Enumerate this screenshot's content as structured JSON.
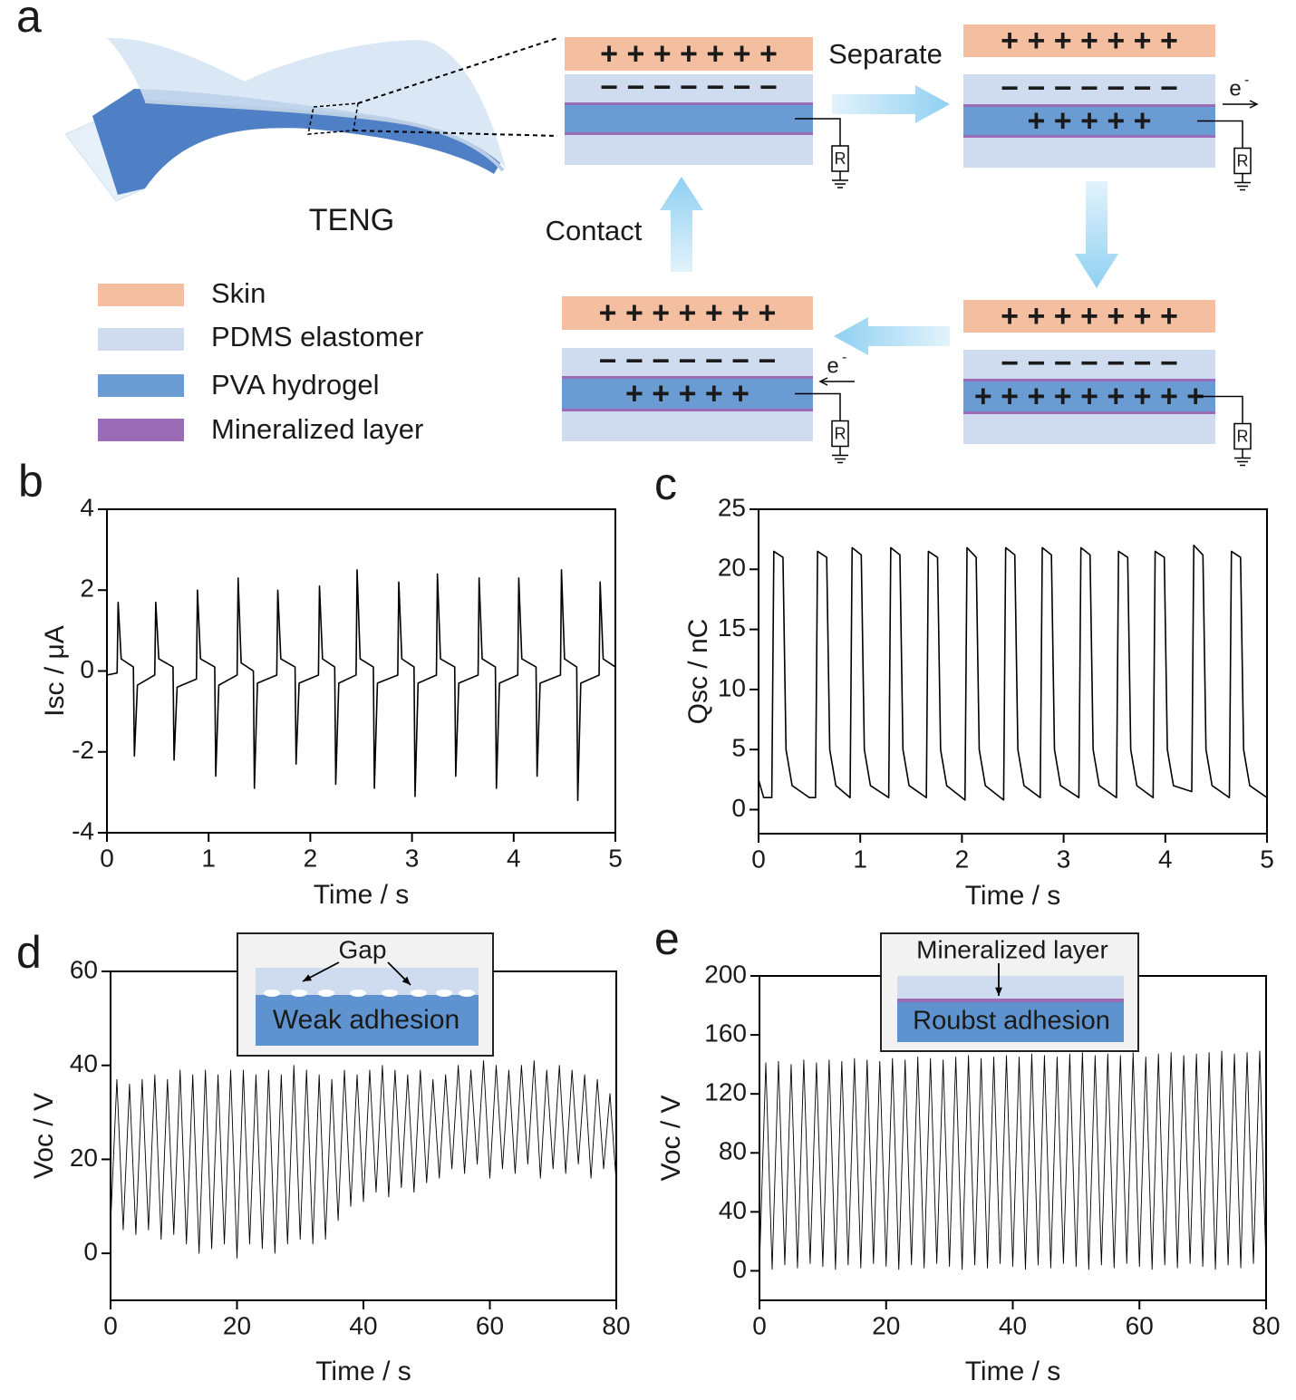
{
  "diagram": {
    "panel": "a",
    "device_label": "TENG",
    "legend": [
      {
        "label": "Skin",
        "color": "#f4bfa1"
      },
      {
        "label": "PDMS elastomer",
        "color": "#cfdbef"
      },
      {
        "label": "PVA hydrogel",
        "color": "#6a9bd3"
      },
      {
        "label": "Mineralized layer",
        "color": "#9b6cb5"
      }
    ],
    "steps": [
      "Separate",
      "Contact"
    ],
    "states": [
      {
        "top": "+ + + + + + +",
        "middle": "− − − − − − −"
      },
      {
        "top": "+ + + + + + +",
        "middle": "− − − − − − −",
        "inner": "+ + + + +"
      },
      {
        "top": "+ + + + + + +",
        "middle": "− − − − − − −",
        "inner": "+ + + + + + + + +"
      },
      {
        "top": "+ + + + + + +",
        "middle": "− − − − − − −",
        "inner": "+ + + + +"
      }
    ],
    "electron": "e",
    "electron_sign": "-",
    "resistor": "R"
  },
  "chart_data": [
    {
      "type": "line",
      "panel": "b",
      "xlabel": "Time / s",
      "ylabel": "Isc / μA",
      "color": "#000000",
      "xlim": [
        0,
        5
      ],
      "ylim": [
        -4,
        4
      ],
      "xticks": [
        0,
        1,
        2,
        3,
        4,
        5
      ],
      "yticks": [
        -4,
        -2,
        0,
        2,
        4
      ],
      "x": [
        0,
        0.1,
        0.11,
        0.14,
        0.26,
        0.27,
        0.3,
        0.47,
        0.48,
        0.51,
        0.65,
        0.66,
        0.69,
        0.88,
        0.89,
        0.92,
        1.06,
        1.07,
        1.1,
        1.28,
        1.29,
        1.32,
        1.44,
        1.45,
        1.48,
        1.67,
        1.68,
        1.71,
        1.85,
        1.86,
        1.89,
        2.08,
        2.09,
        2.12,
        2.24,
        2.25,
        2.28,
        2.45,
        2.46,
        2.49,
        2.62,
        2.63,
        2.66,
        2.86,
        2.87,
        2.9,
        3.02,
        3.03,
        3.06,
        3.24,
        3.25,
        3.28,
        3.42,
        3.43,
        3.46,
        3.65,
        3.66,
        3.69,
        3.82,
        3.83,
        3.86,
        4.04,
        4.05,
        4.08,
        4.22,
        4.23,
        4.26,
        4.46,
        4.47,
        4.5,
        4.62,
        4.63,
        4.66,
        4.84,
        4.85,
        4.88,
        5
      ],
      "values": [
        -0.1,
        -0.05,
        1.7,
        0.3,
        0.1,
        -2.1,
        -0.35,
        -0.1,
        1.7,
        0.3,
        0.1,
        -2.2,
        -0.4,
        -0.2,
        2.0,
        0.3,
        0.1,
        -2.6,
        -0.35,
        -0.1,
        2.3,
        0.2,
        0.0,
        -2.9,
        -0.3,
        -0.1,
        2.0,
        0.3,
        0.1,
        -2.3,
        -0.3,
        -0.1,
        2.1,
        0.3,
        0.1,
        -2.8,
        -0.3,
        -0.1,
        2.5,
        0.3,
        0.1,
        -2.9,
        -0.3,
        -0.1,
        2.2,
        0.3,
        0.1,
        -3.1,
        -0.3,
        -0.1,
        2.4,
        0.3,
        0.1,
        -2.6,
        -0.3,
        -0.1,
        2.3,
        0.3,
        0.1,
        -2.9,
        -0.3,
        -0.1,
        2.3,
        0.3,
        0.1,
        -2.6,
        -0.3,
        -0.1,
        2.5,
        0.3,
        0.1,
        -3.2,
        -0.3,
        -0.1,
        2.2,
        0.3,
        0.1
      ]
    },
    {
      "type": "line",
      "panel": "c",
      "xlabel": "Time / s",
      "ylabel": "Qsc / nC",
      "color": "#000000",
      "xlim": [
        0,
        5
      ],
      "ylim": [
        -2,
        25
      ],
      "xticks": [
        0,
        1,
        2,
        3,
        4,
        5
      ],
      "yticks": [
        0,
        5,
        10,
        15,
        20,
        25
      ],
      "x": [
        0,
        0.05,
        0.13,
        0.15,
        0.24,
        0.27,
        0.33,
        0.5,
        0.56,
        0.58,
        0.67,
        0.7,
        0.76,
        0.9,
        0.92,
        1.01,
        1.04,
        1.1,
        1.28,
        1.3,
        1.39,
        1.42,
        1.48,
        1.65,
        1.67,
        1.76,
        1.79,
        1.85,
        2.03,
        2.05,
        2.14,
        2.17,
        2.23,
        2.41,
        2.43,
        2.52,
        2.55,
        2.61,
        2.77,
        2.79,
        2.88,
        2.91,
        2.97,
        3.15,
        3.17,
        3.26,
        3.29,
        3.35,
        3.52,
        3.54,
        3.63,
        3.66,
        3.72,
        3.88,
        3.9,
        3.99,
        4.02,
        4.08,
        4.26,
        4.28,
        4.37,
        4.4,
        4.46,
        4.63,
        4.65,
        4.74,
        4.77,
        4.83,
        5
      ],
      "values": [
        2.5,
        1.0,
        1.0,
        21.5,
        21.0,
        5,
        2,
        1.0,
        1.0,
        21.5,
        21.0,
        5,
        2,
        1.0,
        21.8,
        21.2,
        5,
        2,
        1.0,
        21.8,
        21.2,
        5,
        2,
        1.0,
        21.5,
        21.0,
        5,
        2,
        0.8,
        21.8,
        21.0,
        5,
        2,
        0.8,
        21.8,
        21.2,
        5,
        2,
        1.0,
        21.8,
        21.2,
        5,
        2,
        1.0,
        21.8,
        21.2,
        5,
        2,
        1.0,
        21.5,
        21.0,
        5,
        2,
        1.0,
        21.5,
        21.0,
        5,
        2,
        1.5,
        22.0,
        21.2,
        5,
        2,
        1.0,
        21.5,
        21.0,
        5,
        2,
        1.0
      ]
    },
    {
      "type": "line",
      "panel": "d",
      "xlabel": "Time / s",
      "ylabel": "Voc / V",
      "color": "#000000",
      "annotations": [
        "Gap",
        "Weak adhesion"
      ],
      "xlim": [
        0,
        80
      ],
      "ylim": [
        -10,
        60
      ],
      "xticks": [
        0,
        20,
        40,
        60,
        80
      ],
      "yticks": [
        0,
        20,
        40,
        60
      ],
      "x": [
        0,
        1,
        2,
        3,
        4,
        5,
        6,
        7,
        8,
        9,
        10,
        11,
        12,
        13,
        14,
        15,
        16,
        17,
        18,
        19,
        20,
        21,
        22,
        23,
        24,
        25,
        26,
        27,
        28,
        29,
        30,
        31,
        32,
        33,
        34,
        35,
        36,
        37,
        38,
        39,
        40,
        41,
        42,
        43,
        44,
        45,
        46,
        47,
        48,
        49,
        50,
        51,
        52,
        53,
        54,
        55,
        56,
        57,
        58,
        59,
        60,
        61,
        62,
        63,
        64,
        65,
        66,
        67,
        68,
        69,
        70,
        71,
        72,
        73,
        74,
        75,
        76,
        77,
        78,
        79,
        80
      ],
      "values": [
        6,
        37,
        5,
        36,
        4,
        37,
        5,
        38,
        3,
        37,
        4,
        39,
        2,
        38,
        0,
        39,
        1,
        38,
        2,
        39,
        -1,
        39,
        2,
        38,
        1,
        39,
        0,
        38,
        2,
        40,
        3,
        39,
        2,
        38,
        3,
        37,
        7,
        39,
        10,
        38,
        11,
        39,
        13,
        40,
        12,
        39,
        14,
        38,
        13,
        39,
        15,
        37,
        16,
        38,
        18,
        40,
        17,
        39,
        19,
        41,
        16,
        40,
        18,
        39,
        17,
        40,
        19,
        41,
        16,
        39,
        18,
        40,
        17,
        39,
        19,
        38,
        16,
        37,
        18,
        34,
        15
      ]
    },
    {
      "type": "line",
      "panel": "e",
      "xlabel": "Time / s",
      "ylabel": "Voc / V",
      "color": "#000000",
      "annotations": [
        "Mineralized layer",
        "Roubst adhesion"
      ],
      "xlim": [
        0,
        80
      ],
      "ylim": [
        -20,
        200
      ],
      "xticks": [
        0,
        20,
        40,
        60,
        80
      ],
      "yticks": [
        0,
        40,
        80,
        120,
        160,
        200
      ],
      "x": [
        0,
        1,
        2,
        3,
        4,
        5,
        6,
        7,
        8,
        9,
        10,
        11,
        12,
        13,
        14,
        15,
        16,
        17,
        18,
        19,
        20,
        21,
        22,
        23,
        24,
        25,
        26,
        27,
        28,
        29,
        30,
        31,
        32,
        33,
        34,
        35,
        36,
        37,
        38,
        39,
        40,
        41,
        42,
        43,
        44,
        45,
        46,
        47,
        48,
        49,
        50,
        51,
        52,
        53,
        54,
        55,
        56,
        57,
        58,
        59,
        60,
        61,
        62,
        63,
        64,
        65,
        66,
        67,
        68,
        69,
        70,
        71,
        72,
        73,
        74,
        75,
        76,
        77,
        78,
        79,
        80
      ],
      "values": [
        3,
        141,
        1,
        142,
        4,
        140,
        2,
        143,
        5,
        141,
        3,
        143,
        1,
        142,
        4,
        144,
        2,
        143,
        5,
        142,
        3,
        144,
        1,
        143,
        4,
        145,
        2,
        144,
        5,
        143,
        3,
        145,
        1,
        146,
        4,
        144,
        2,
        145,
        5,
        146,
        3,
        145,
        1,
        147,
        4,
        146,
        2,
        145,
        5,
        147,
        3,
        148,
        1,
        146,
        4,
        147,
        2,
        146,
        5,
        148,
        3,
        145,
        1,
        147,
        4,
        148,
        2,
        146,
        5,
        147,
        3,
        148,
        1,
        149,
        4,
        147,
        2,
        148,
        5,
        149,
        3
      ]
    }
  ]
}
